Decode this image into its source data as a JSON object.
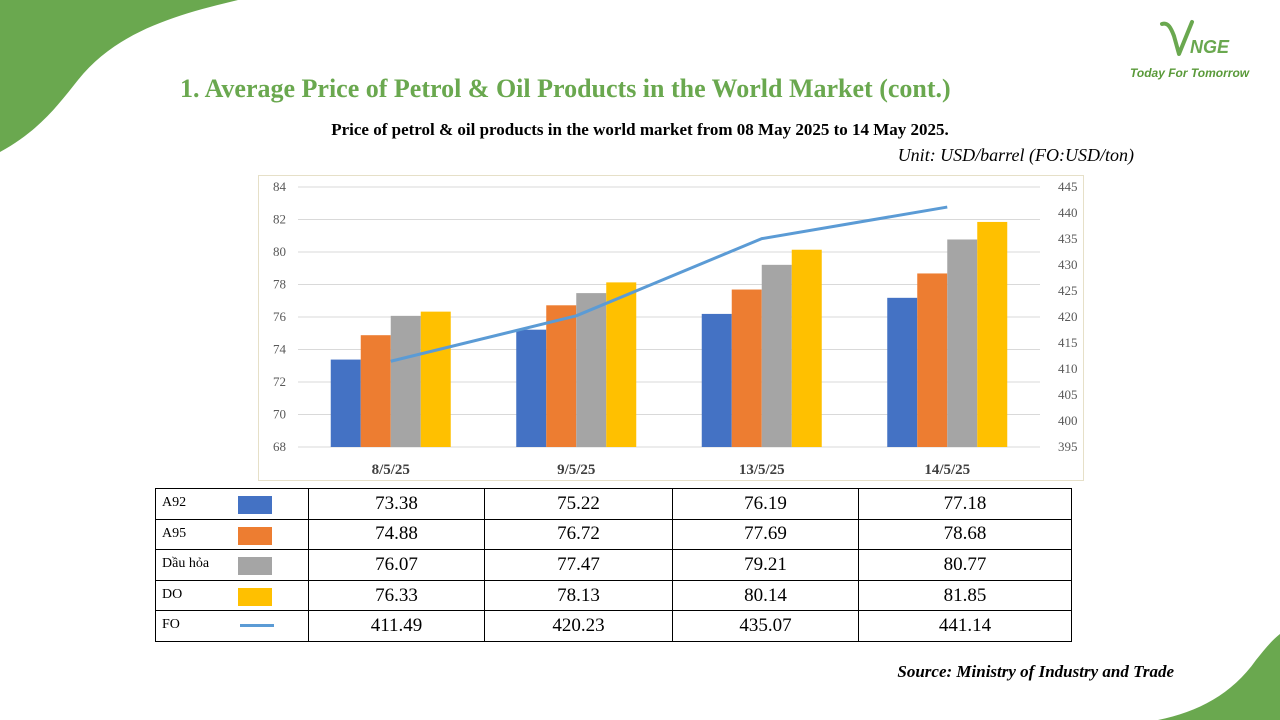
{
  "logo": {
    "mark": "VNGE",
    "tagline": "Today For Tomorrow"
  },
  "page_title": "1. Average Price of Petrol & Oil Products in the World Market (cont.)",
  "chart_title": "Price of petrol & oil products in the world market from 08 May 2025 to 14 May 2025.",
  "unit_note": "Unit: USD/barrel (FO:USD/ton)",
  "source": "Source: Ministry of Industry and Trade",
  "colors": {
    "accent_green": "#6aa84f",
    "A92": "#4472c4",
    "A95": "#ed7d31",
    "Dau_hoa": "#a5a5a5",
    "DO": "#ffc000",
    "FO": "#5b9bd5"
  },
  "chart_data": {
    "type": "bar",
    "categories": [
      "8/5/25",
      "9/5/25",
      "13/5/25",
      "14/5/25"
    ],
    "series": [
      {
        "name": "A92",
        "type": "bar",
        "axis": "left",
        "color": "#4472c4",
        "values": [
          73.38,
          75.22,
          76.19,
          77.18
        ]
      },
      {
        "name": "A95",
        "type": "bar",
        "axis": "left",
        "color": "#ed7d31",
        "values": [
          74.88,
          76.72,
          77.69,
          78.68
        ]
      },
      {
        "name": "Dầu hỏa",
        "type": "bar",
        "axis": "left",
        "color": "#a5a5a5",
        "values": [
          76.07,
          77.47,
          79.21,
          80.77
        ]
      },
      {
        "name": "DO",
        "type": "bar",
        "axis": "left",
        "color": "#ffc000",
        "values": [
          76.33,
          78.13,
          80.14,
          81.85
        ]
      },
      {
        "name": "FO",
        "type": "line",
        "axis": "right",
        "color": "#5b9bd5",
        "values": [
          411.49,
          420.23,
          435.07,
          441.14
        ]
      }
    ],
    "ylim_left": [
      68,
      84
    ],
    "yticks_left": [
      "68",
      "70",
      "72",
      "74",
      "76",
      "78",
      "80",
      "82",
      "84"
    ],
    "ylim_right": [
      395,
      445
    ],
    "yticks_right": [
      "395",
      "400",
      "405",
      "410",
      "415",
      "420",
      "425",
      "430",
      "435",
      "440",
      "445"
    ],
    "grid": true,
    "legend": "data-table-below"
  },
  "table": {
    "rows": [
      {
        "label": "A92",
        "swatch": "bar",
        "color": "#4472c4",
        "values": [
          "73.38",
          "75.22",
          "76.19",
          "77.18"
        ]
      },
      {
        "label": "A95",
        "swatch": "bar",
        "color": "#ed7d31",
        "values": [
          "74.88",
          "76.72",
          "77.69",
          "78.68"
        ]
      },
      {
        "label": "Dầu hỏa",
        "swatch": "bar",
        "color": "#a5a5a5",
        "values": [
          "76.07",
          "77.47",
          "79.21",
          "80.77"
        ]
      },
      {
        "label": "DO",
        "swatch": "bar",
        "color": "#ffc000",
        "values": [
          "76.33",
          "78.13",
          "80.14",
          "81.85"
        ]
      },
      {
        "label": "FO",
        "swatch": "line",
        "color": "#5b9bd5",
        "values": [
          "411.49",
          "420.23",
          "435.07",
          "441.14"
        ]
      }
    ]
  }
}
